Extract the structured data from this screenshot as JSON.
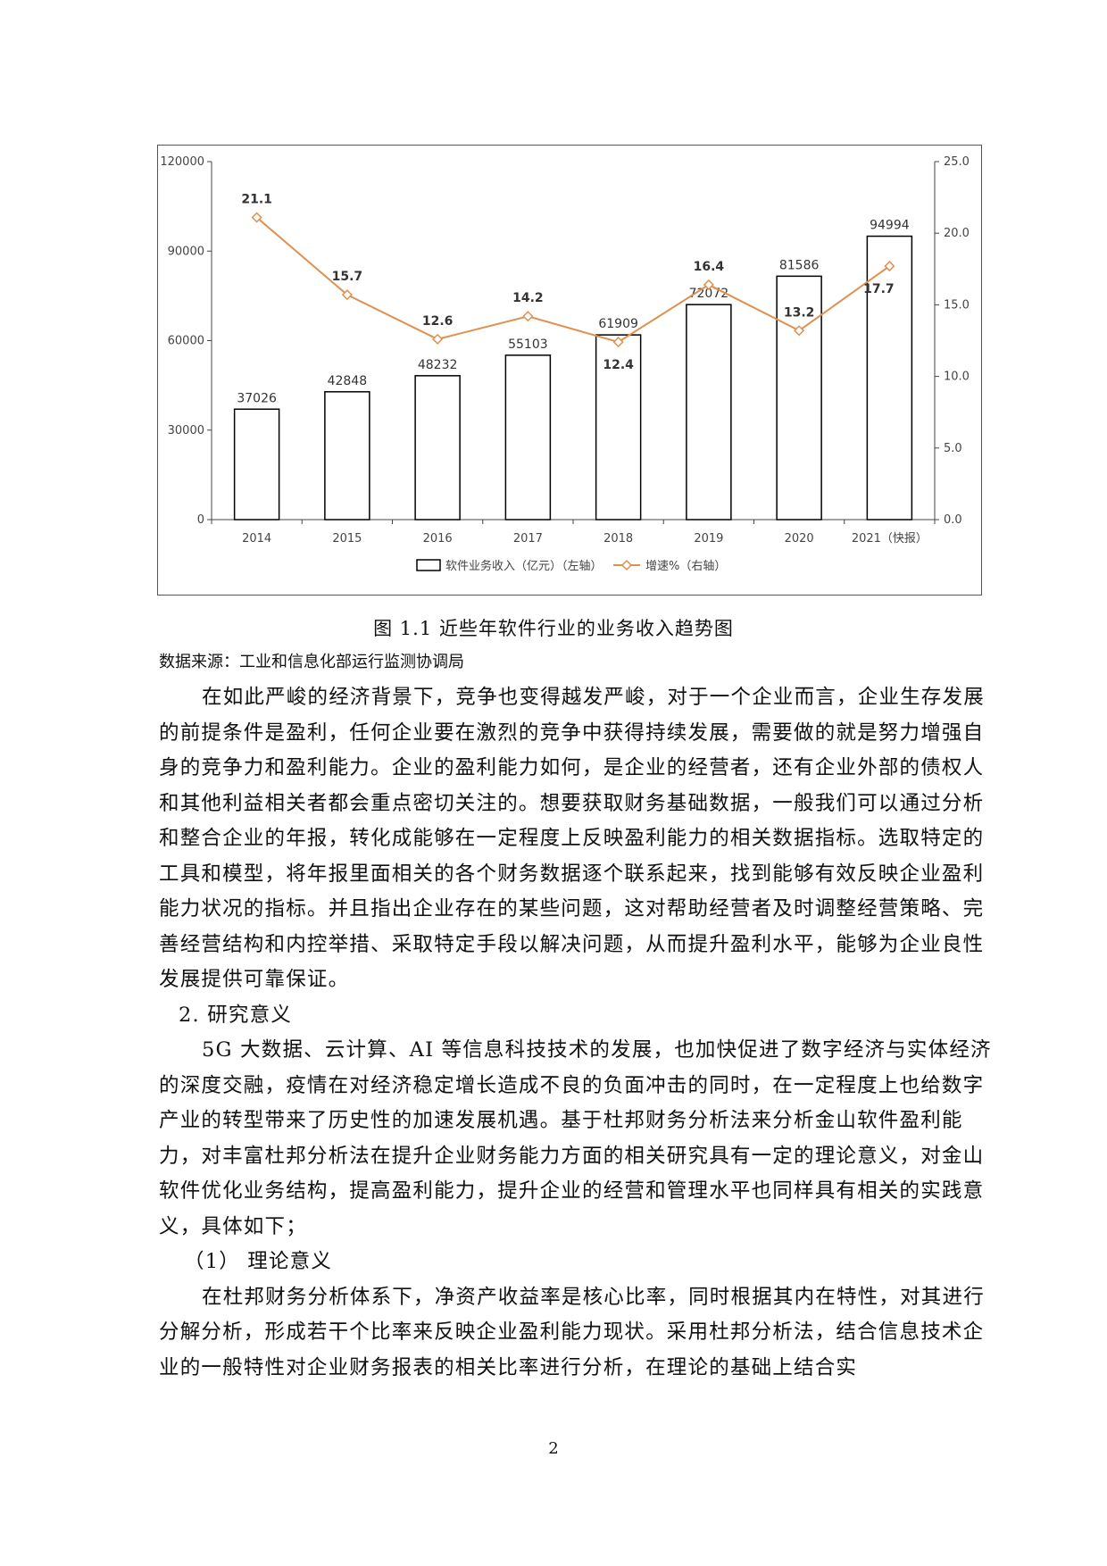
{
  "chart_data": {
    "type": "bar",
    "categories": [
      "2014",
      "2015",
      "2016",
      "2017",
      "2018",
      "2019",
      "2020",
      "2021（快报）"
    ],
    "series": [
      {
        "name": "软件业务收入（亿元）（左轴）",
        "type": "bar",
        "axis": "left",
        "values": [
          37026,
          42848,
          48232,
          55103,
          61909,
          72072,
          81586,
          94994
        ]
      },
      {
        "name": "增速%（右轴）",
        "type": "line",
        "axis": "right",
        "values": [
          21.1,
          15.7,
          12.6,
          14.2,
          12.4,
          16.4,
          13.2,
          17.7
        ]
      }
    ],
    "left_axis": {
      "min": 0,
      "max": 120000,
      "ticks": [
        "0",
        "30000",
        "60000",
        "90000",
        "120000"
      ]
    },
    "right_axis": {
      "min": 0,
      "max": 25,
      "ticks": [
        "0.0",
        "5.0",
        "10.0",
        "15.0",
        "20.0",
        "25.0"
      ]
    },
    "colors": {
      "bar_fill": "#ffffff",
      "bar_stroke": "#000000",
      "line": "#e0904f"
    },
    "legend_position": "bottom",
    "grid": false
  },
  "caption": "图 1.1 近些年软件行业的业务收入趋势图",
  "source": "数据来源：工业和信息化部运行监测协调局",
  "paragraphs": [
    "在如此严峻的经济背景下，竞争也变得越发严峻，对于一个企业而言，企业生存发展的前提条件是盈利，任何企业要在激烈的竞争中获得持续发展，需要做的就是努力增强自身的竞争力和盈利能力。企业的盈利能力如何，是企业的经营者，还有企业外部的债权人和其他利益相关者都会重点密切关注的。想要获取财务基础数据，一般我们可以通过分析和整合企业的年报，转化成能够在一定程度上反映盈利能力的相关数据指标。选取特定的工具和模型，将年报里面相关的各个财务数据逐个联系起来，找到能够有效反映企业盈利能力状况的指标。并且指出企业存在的某些问题，这对帮助经营者及时调整经营策略、完善经营结构和内控举措、采取特定手段以解决问题，从而提升盈利水平，能够为企业良性发展提供可靠保证。",
    "2. 研究意义",
    "5G 大数据、云计算、AI 等信息科技技术的发展，也加快促进了数字经济与实体经济的深度交融，疫情在对经济稳定增长造成不良的负面冲击的同时，在一定程度上也给数字产业的转型带来了历史性的加速发展机遇。基于杜邦财务分析法来分析金山软件盈利能力，对丰富杜邦分析法在提升企业财务能力方面的相关研究具有一定的理论意义，对金山软件优化业务结构，提高盈利能力，提升企业的经营和管理水平也同样具有相关的实践意义，具体如下；",
    "（1） 理论意义",
    "在杜邦财务分析体系下，净资产收益率是核心比率，同时根据其内在特性，对其进行分解分析，形成若干个比率来反映企业盈利能力现状。采用杜邦分析法，结合信息技术企业的一般特性对企业财务报表的相关比率进行分析，在理论的基础上结合实"
  ],
  "page_number": "2"
}
